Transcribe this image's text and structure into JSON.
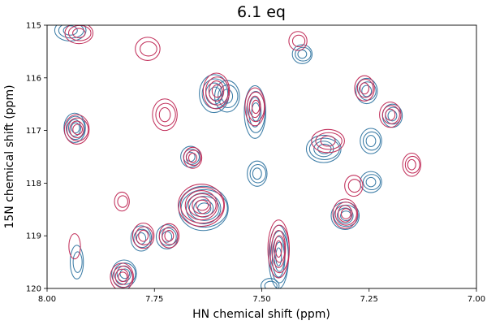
{
  "chart_data": {
    "type": "contour",
    "title": "6.1 eq",
    "xlabel": "HN chemical shift (ppm)",
    "ylabel": "15N chemical shift (ppm)",
    "xlim": [
      8.0,
      7.0
    ],
    "ylim": [
      120,
      115
    ],
    "x_reversed": true,
    "y_reversed": true,
    "x_ticks": [
      "8.00",
      "7.75",
      "7.50",
      "7.25",
      "7.00"
    ],
    "y_ticks": [
      "115",
      "116",
      "117",
      "118",
      "119",
      "120"
    ],
    "grid": false,
    "colors": {
      "blue": "#3b7ca6",
      "red": "#c2315c"
    },
    "series": [
      {
        "color": "blue",
        "peaks": [
          {
            "x": 7.945,
            "y": 115.1,
            "rx": 0.038,
            "ry": 0.2,
            "levels": 3
          },
          {
            "x": 7.935,
            "y": 116.95,
            "rx": 0.026,
            "ry": 0.28,
            "levels": 4
          },
          {
            "x": 7.93,
            "y": 119.5,
            "rx": 0.016,
            "ry": 0.32,
            "levels": 2
          },
          {
            "x": 7.82,
            "y": 119.72,
            "rx": 0.03,
            "ry": 0.26,
            "levels": 4
          },
          {
            "x": 7.78,
            "y": 119.05,
            "rx": 0.025,
            "ry": 0.24,
            "levels": 3
          },
          {
            "x": 7.72,
            "y": 119.02,
            "rx": 0.026,
            "ry": 0.23,
            "levels": 3
          },
          {
            "x": 7.665,
            "y": 117.5,
            "rx": 0.024,
            "ry": 0.2,
            "levels": 3
          },
          {
            "x": 7.635,
            "y": 118.48,
            "rx": 0.06,
            "ry": 0.42,
            "levels": 6
          },
          {
            "x": 7.61,
            "y": 116.3,
            "rx": 0.036,
            "ry": 0.36,
            "levels": 4
          },
          {
            "x": 7.58,
            "y": 116.35,
            "rx": 0.03,
            "ry": 0.3,
            "levels": 3
          },
          {
            "x": 7.515,
            "y": 116.65,
            "rx": 0.026,
            "ry": 0.5,
            "levels": 4
          },
          {
            "x": 7.51,
            "y": 117.82,
            "rx": 0.024,
            "ry": 0.24,
            "levels": 3
          },
          {
            "x": 7.46,
            "y": 119.4,
            "rx": 0.024,
            "ry": 0.6,
            "levels": 5
          },
          {
            "x": 7.48,
            "y": 119.95,
            "rx": 0.022,
            "ry": 0.14,
            "levels": 2
          },
          {
            "x": 7.405,
            "y": 115.55,
            "rx": 0.024,
            "ry": 0.18,
            "levels": 3
          },
          {
            "x": 7.355,
            "y": 117.35,
            "rx": 0.042,
            "ry": 0.26,
            "levels": 4
          },
          {
            "x": 7.305,
            "y": 118.62,
            "rx": 0.034,
            "ry": 0.26,
            "levels": 4
          },
          {
            "x": 7.255,
            "y": 116.25,
            "rx": 0.026,
            "ry": 0.24,
            "levels": 3
          },
          {
            "x": 7.245,
            "y": 117.2,
            "rx": 0.026,
            "ry": 0.24,
            "levels": 3
          },
          {
            "x": 7.245,
            "y": 117.98,
            "rx": 0.026,
            "ry": 0.2,
            "levels": 3
          },
          {
            "x": 7.195,
            "y": 116.72,
            "rx": 0.024,
            "ry": 0.22,
            "levels": 3
          }
        ]
      },
      {
        "color": "red",
        "peaks": [
          {
            "x": 7.925,
            "y": 115.15,
            "rx": 0.034,
            "ry": 0.2,
            "levels": 3
          },
          {
            "x": 7.93,
            "y": 116.98,
            "rx": 0.03,
            "ry": 0.28,
            "levels": 4
          },
          {
            "x": 7.935,
            "y": 119.2,
            "rx": 0.014,
            "ry": 0.24,
            "levels": 1
          },
          {
            "x": 7.825,
            "y": 118.35,
            "rx": 0.018,
            "ry": 0.18,
            "levels": 2
          },
          {
            "x": 7.825,
            "y": 119.78,
            "rx": 0.028,
            "ry": 0.26,
            "levels": 4
          },
          {
            "x": 7.775,
            "y": 119.0,
            "rx": 0.026,
            "ry": 0.24,
            "levels": 3
          },
          {
            "x": 7.765,
            "y": 115.45,
            "rx": 0.03,
            "ry": 0.22,
            "levels": 2
          },
          {
            "x": 7.725,
            "y": 116.7,
            "rx": 0.03,
            "ry": 0.3,
            "levels": 3
          },
          {
            "x": 7.715,
            "y": 119.0,
            "rx": 0.024,
            "ry": 0.23,
            "levels": 3
          },
          {
            "x": 7.66,
            "y": 117.52,
            "rx": 0.022,
            "ry": 0.2,
            "levels": 3
          },
          {
            "x": 7.64,
            "y": 118.42,
            "rx": 0.056,
            "ry": 0.4,
            "levels": 6
          },
          {
            "x": 7.605,
            "y": 116.25,
            "rx": 0.032,
            "ry": 0.34,
            "levels": 4
          },
          {
            "x": 7.515,
            "y": 116.55,
            "rx": 0.024,
            "ry": 0.36,
            "levels": 4
          },
          {
            "x": 7.46,
            "y": 119.25,
            "rx": 0.026,
            "ry": 0.55,
            "levels": 5
          },
          {
            "x": 7.415,
            "y": 115.3,
            "rx": 0.022,
            "ry": 0.18,
            "levels": 2
          },
          {
            "x": 7.345,
            "y": 117.2,
            "rx": 0.04,
            "ry": 0.22,
            "levels": 3
          },
          {
            "x": 7.305,
            "y": 118.58,
            "rx": 0.03,
            "ry": 0.28,
            "levels": 4
          },
          {
            "x": 7.285,
            "y": 118.05,
            "rx": 0.022,
            "ry": 0.2,
            "levels": 2
          },
          {
            "x": 7.26,
            "y": 116.2,
            "rx": 0.024,
            "ry": 0.24,
            "levels": 3
          },
          {
            "x": 7.2,
            "y": 116.7,
            "rx": 0.026,
            "ry": 0.24,
            "levels": 3
          },
          {
            "x": 7.15,
            "y": 117.65,
            "rx": 0.022,
            "ry": 0.22,
            "levels": 3
          }
        ]
      }
    ]
  }
}
